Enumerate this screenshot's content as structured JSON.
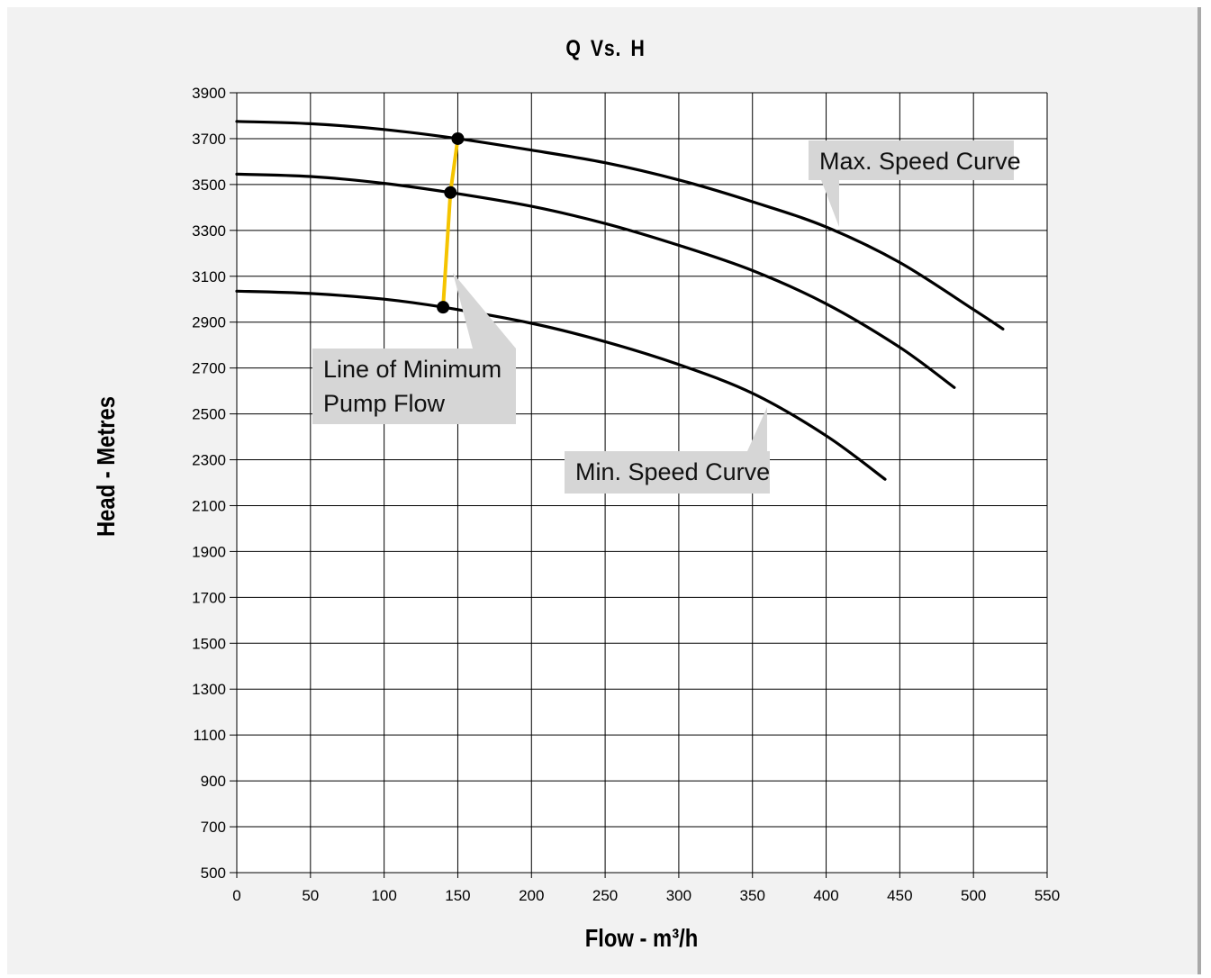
{
  "chart_data": {
    "type": "line",
    "title": "Q Vs. H",
    "xlabel": "Flow - m³/h",
    "ylabel": "Head - Metres",
    "xlim": [
      0,
      550
    ],
    "ylim": [
      500,
      3900
    ],
    "x_ticks": [
      0,
      50,
      100,
      150,
      200,
      250,
      300,
      350,
      400,
      450,
      500,
      550
    ],
    "y_ticks": [
      500,
      700,
      900,
      1100,
      1300,
      1500,
      1700,
      1900,
      2100,
      2300,
      2500,
      2700,
      2900,
      3100,
      3300,
      3500,
      3700,
      3900
    ],
    "grid": true,
    "series": [
      {
        "name": "Max. Speed Curve",
        "x": [
          0,
          50,
          100,
          150,
          200,
          250,
          300,
          350,
          400,
          450,
          500,
          520
        ],
        "y": [
          3775,
          3765,
          3740,
          3700,
          3650,
          3595,
          3520,
          3425,
          3315,
          3160,
          2955,
          2870
        ]
      },
      {
        "x": [
          0,
          50,
          100,
          145,
          200,
          250,
          300,
          350,
          400,
          450,
          487
        ],
        "y": [
          3545,
          3535,
          3505,
          3465,
          3405,
          3330,
          3235,
          3125,
          2980,
          2790,
          2615
        ]
      },
      {
        "name": "Min. Speed Curve",
        "x": [
          0,
          50,
          100,
          140,
          200,
          250,
          300,
          350,
          400,
          440
        ],
        "y": [
          3035,
          3025,
          3000,
          2965,
          2895,
          2815,
          2715,
          2590,
          2405,
          2215
        ]
      },
      {
        "name": "Line of Minimum Pump Flow",
        "x": [
          140,
          145,
          150
        ],
        "y": [
          2965,
          3465,
          3700
        ],
        "color": "#f5c400",
        "markers": true
      }
    ],
    "annotations": [
      {
        "text": "Max. Speed Curve",
        "target": [
          412,
          3305
        ]
      },
      {
        "text": "Line of Minimum Pump Flow",
        "lines": [
          "Line of Minimum",
          "Pump Flow"
        ],
        "target": [
          148,
          3125
        ]
      },
      {
        "text": "Min. Speed Curve",
        "target": [
          360,
          2545
        ]
      }
    ],
    "colors": {
      "curve": "#000000",
      "min_flow_line": "#f5c400",
      "callout": "#d6d6d6",
      "background": "#f2f2f2",
      "plot": "#ffffff"
    }
  }
}
